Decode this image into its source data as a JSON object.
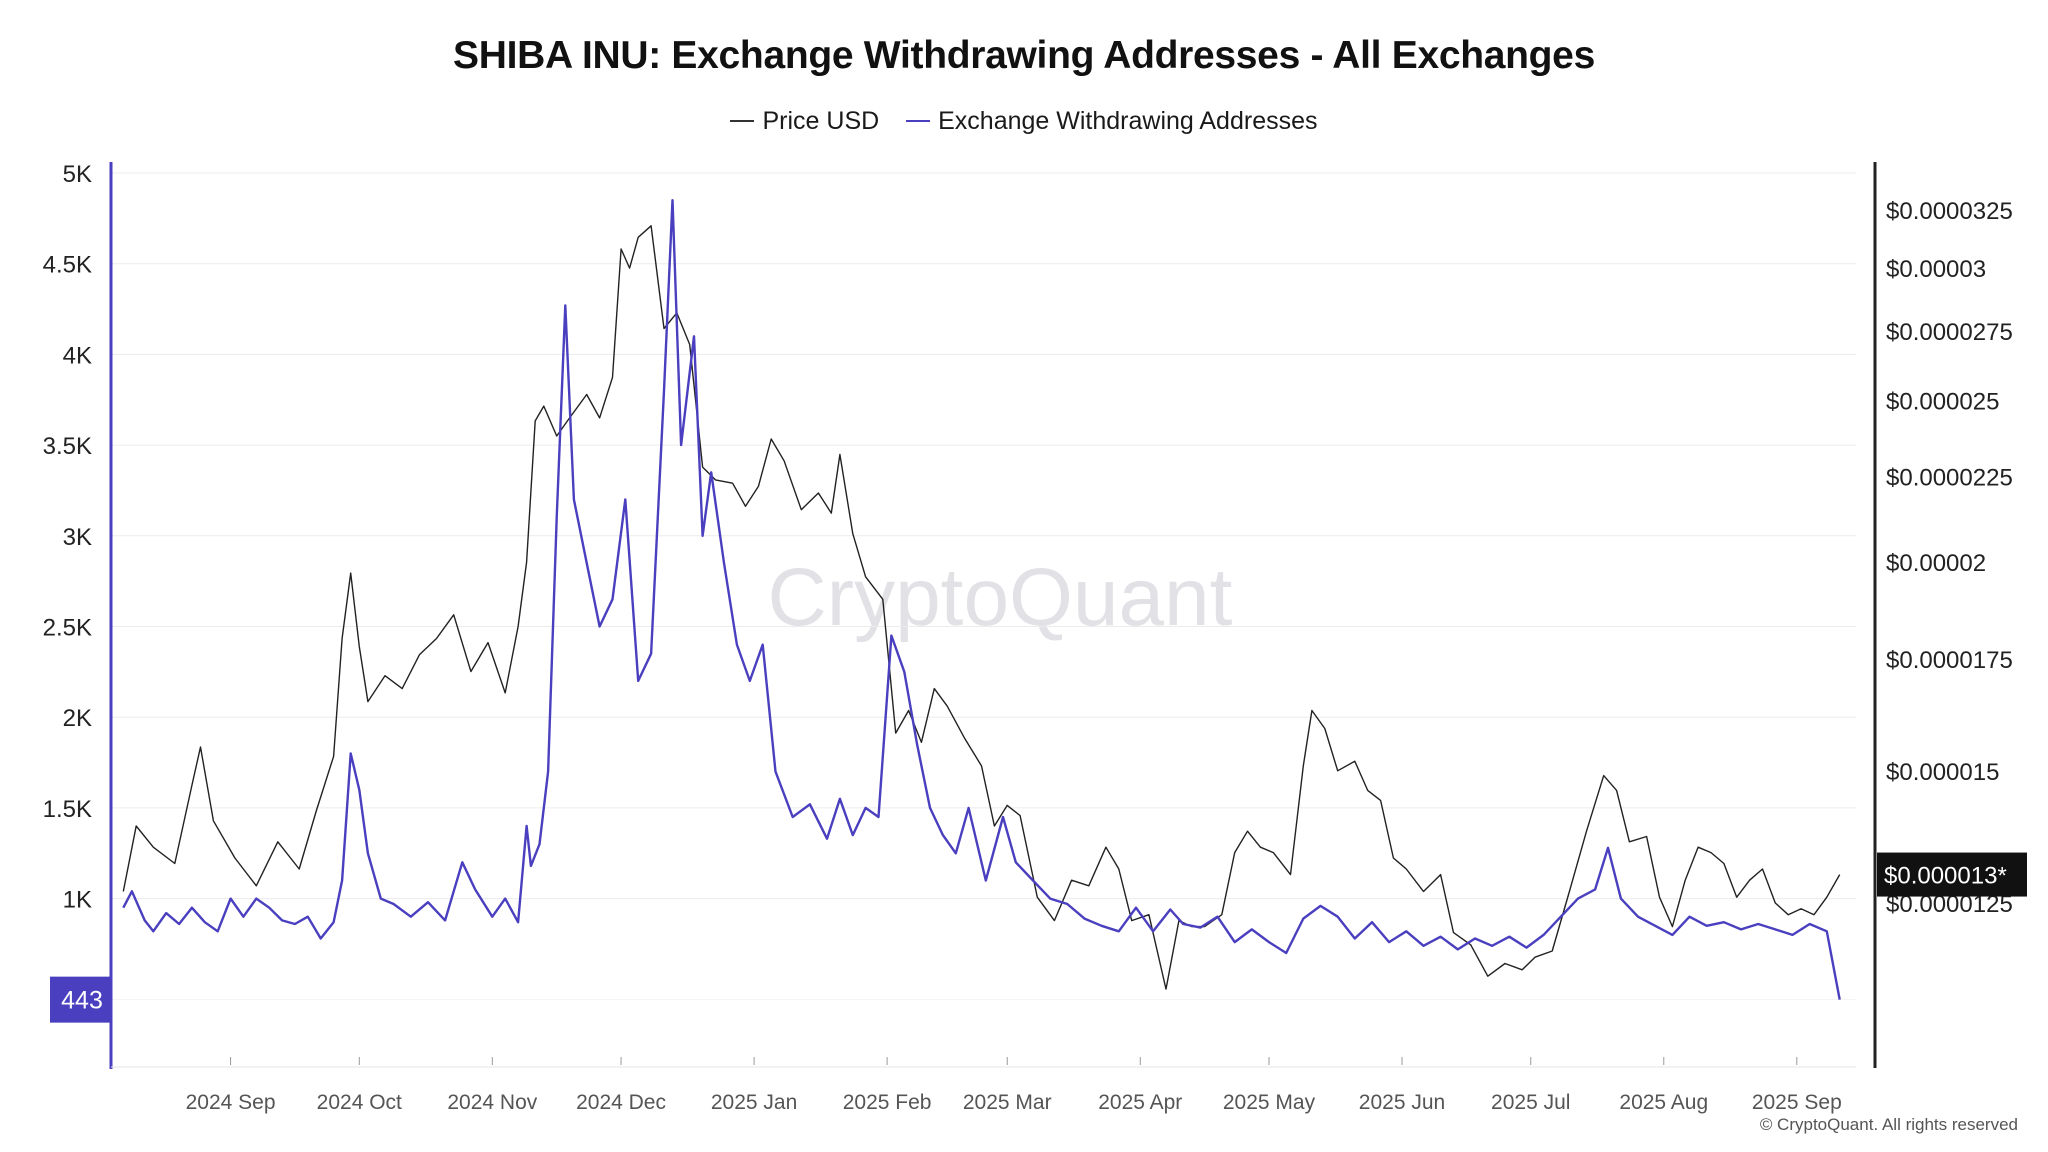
{
  "chart_data": {
    "type": "line",
    "title": "SHIBA INU: Exchange Withdrawing Addresses - All Exchanges",
    "x_ticks": [
      "2024 Sep",
      "2024 Oct",
      "2024 Nov",
      "2024 Dec",
      "2025 Jan",
      "2025 Feb",
      "2025 Mar",
      "2025 Apr",
      "2025 May",
      "2025 Jun",
      "2025 Jul",
      "2025 Aug",
      "2025 Sep"
    ],
    "left_axis": {
      "ticks": [
        "5K",
        "4.5K",
        "4K",
        "3.5K",
        "3K",
        "2.5K",
        "2K",
        "1.5K",
        "1K"
      ],
      "ylim": [
        0,
        5000
      ]
    },
    "right_axis": {
      "ticks": [
        "$0.0000325",
        "$0.00003",
        "$0.0000275",
        "$0.000025",
        "$0.0000225",
        "$0.00002",
        "$0.0000175",
        "$0.000015",
        "$0.0000125"
      ],
      "scale": "log"
    },
    "current_value_label": "443",
    "current_price_label": "$0.000013*",
    "grid": true,
    "legend_position": "top-center",
    "series": [
      {
        "name": "Price USD",
        "axis": "right",
        "color": "#222222",
        "points": [
          [
            "2024-08-07",
            1.27e-05
          ],
          [
            "2024-08-10",
            1.39e-05
          ],
          [
            "2024-08-14",
            1.35e-05
          ],
          [
            "2024-08-19",
            1.32e-05
          ],
          [
            "2024-08-23",
            1.47e-05
          ],
          [
            "2024-08-25",
            1.55e-05
          ],
          [
            "2024-08-28",
            1.4e-05
          ],
          [
            "2024-09-02",
            1.33e-05
          ],
          [
            "2024-09-07",
            1.28e-05
          ],
          [
            "2024-09-12",
            1.36e-05
          ],
          [
            "2024-09-17",
            1.31e-05
          ],
          [
            "2024-09-21",
            1.42e-05
          ],
          [
            "2024-09-25",
            1.53e-05
          ],
          [
            "2024-09-27",
            1.8e-05
          ],
          [
            "2024-09-29",
            1.97e-05
          ],
          [
            "2024-10-01",
            1.78e-05
          ],
          [
            "2024-10-03",
            1.65e-05
          ],
          [
            "2024-10-07",
            1.71e-05
          ],
          [
            "2024-10-11",
            1.68e-05
          ],
          [
            "2024-10-15",
            1.76e-05
          ],
          [
            "2024-10-19",
            1.8e-05
          ],
          [
            "2024-10-23",
            1.86e-05
          ],
          [
            "2024-10-27",
            1.72e-05
          ],
          [
            "2024-10-31",
            1.79e-05
          ],
          [
            "2024-11-04",
            1.67e-05
          ],
          [
            "2024-11-07",
            1.83e-05
          ],
          [
            "2024-11-09",
            2e-05
          ],
          [
            "2024-11-11",
            2.43e-05
          ],
          [
            "2024-11-13",
            2.48e-05
          ],
          [
            "2024-11-16",
            2.38e-05
          ],
          [
            "2024-11-19",
            2.44e-05
          ],
          [
            "2024-11-23",
            2.52e-05
          ],
          [
            "2024-11-26",
            2.44e-05
          ],
          [
            "2024-11-29",
            2.58e-05
          ],
          [
            "2024-12-01",
            3.08e-05
          ],
          [
            "2024-12-03",
            3e-05
          ],
          [
            "2024-12-05",
            3.13e-05
          ],
          [
            "2024-12-08",
            3.18e-05
          ],
          [
            "2024-12-11",
            2.76e-05
          ],
          [
            "2024-12-14",
            2.82e-05
          ],
          [
            "2024-12-17",
            2.7e-05
          ],
          [
            "2024-12-20",
            2.28e-05
          ],
          [
            "2024-12-23",
            2.24e-05
          ],
          [
            "2024-12-27",
            2.23e-05
          ],
          [
            "2024-12-30",
            2.16e-05
          ],
          [
            "2025-01-02",
            2.22e-05
          ],
          [
            "2025-01-05",
            2.37e-05
          ],
          [
            "2025-01-08",
            2.3e-05
          ],
          [
            "2025-01-12",
            2.15e-05
          ],
          [
            "2025-01-16",
            2.2e-05
          ],
          [
            "2025-01-19",
            2.14e-05
          ],
          [
            "2025-01-21",
            2.32e-05
          ],
          [
            "2025-01-24",
            2.08e-05
          ],
          [
            "2025-01-27",
            1.96e-05
          ],
          [
            "2025-01-31",
            1.9e-05
          ],
          [
            "2025-02-03",
            1.58e-05
          ],
          [
            "2025-02-06",
            1.63e-05
          ],
          [
            "2025-02-09",
            1.56e-05
          ],
          [
            "2025-02-12",
            1.68e-05
          ],
          [
            "2025-02-15",
            1.64e-05
          ],
          [
            "2025-02-19",
            1.57e-05
          ],
          [
            "2025-02-23",
            1.51e-05
          ],
          [
            "2025-02-26",
            1.39e-05
          ],
          [
            "2025-03-01",
            1.43e-05
          ],
          [
            "2025-03-04",
            1.41e-05
          ],
          [
            "2025-03-08",
            1.26e-05
          ],
          [
            "2025-03-12",
            1.22e-05
          ],
          [
            "2025-03-16",
            1.29e-05
          ],
          [
            "2025-03-20",
            1.28e-05
          ],
          [
            "2025-03-24",
            1.35e-05
          ],
          [
            "2025-03-27",
            1.31e-05
          ],
          [
            "2025-03-30",
            1.22e-05
          ],
          [
            "2025-04-03",
            1.23e-05
          ],
          [
            "2025-04-07",
            1.11e-05
          ],
          [
            "2025-04-10",
            1.22e-05
          ],
          [
            "2025-04-13",
            1.21e-05
          ],
          [
            "2025-04-16",
            1.21e-05
          ],
          [
            "2025-04-20",
            1.23e-05
          ],
          [
            "2025-04-23",
            1.34e-05
          ],
          [
            "2025-04-26",
            1.38e-05
          ],
          [
            "2025-04-29",
            1.35e-05
          ],
          [
            "2025-05-02",
            1.34e-05
          ],
          [
            "2025-05-06",
            1.3e-05
          ],
          [
            "2025-05-09",
            1.51e-05
          ],
          [
            "2025-05-11",
            1.63e-05
          ],
          [
            "2025-05-14",
            1.59e-05
          ],
          [
            "2025-05-17",
            1.5e-05
          ],
          [
            "2025-05-21",
            1.52e-05
          ],
          [
            "2025-05-24",
            1.46e-05
          ],
          [
            "2025-05-27",
            1.44e-05
          ],
          [
            "2025-05-30",
            1.33e-05
          ],
          [
            "2025-06-02",
            1.31e-05
          ],
          [
            "2025-06-06",
            1.27e-05
          ],
          [
            "2025-06-10",
            1.3e-05
          ],
          [
            "2025-06-13",
            1.2e-05
          ],
          [
            "2025-06-17",
            1.18e-05
          ],
          [
            "2025-06-21",
            1.13e-05
          ],
          [
            "2025-06-25",
            1.15e-05
          ],
          [
            "2025-06-29",
            1.14e-05
          ],
          [
            "2025-07-02",
            1.16e-05
          ],
          [
            "2025-07-06",
            1.17e-05
          ],
          [
            "2025-07-10",
            1.27e-05
          ],
          [
            "2025-07-14",
            1.38e-05
          ],
          [
            "2025-07-18",
            1.49e-05
          ],
          [
            "2025-07-21",
            1.46e-05
          ],
          [
            "2025-07-24",
            1.36e-05
          ],
          [
            "2025-07-28",
            1.37e-05
          ],
          [
            "2025-07-31",
            1.26e-05
          ],
          [
            "2025-08-03",
            1.21e-05
          ],
          [
            "2025-08-06",
            1.29e-05
          ],
          [
            "2025-08-09",
            1.35e-05
          ],
          [
            "2025-08-12",
            1.34e-05
          ],
          [
            "2025-08-15",
            1.32e-05
          ],
          [
            "2025-08-18",
            1.26e-05
          ],
          [
            "2025-08-21",
            1.29e-05
          ],
          [
            "2025-08-24",
            1.31e-05
          ],
          [
            "2025-08-27",
            1.25e-05
          ],
          [
            "2025-08-30",
            1.23e-05
          ],
          [
            "2025-09-02",
            1.24e-05
          ],
          [
            "2025-09-05",
            1.23e-05
          ],
          [
            "2025-09-08",
            1.26e-05
          ],
          [
            "2025-09-11",
            1.3e-05
          ]
        ]
      },
      {
        "name": "Exchange Withdrawing Addresses",
        "axis": "left",
        "color": "#4a3fbf",
        "points": [
          [
            "2024-08-07",
            950
          ],
          [
            "2024-08-09",
            1040
          ],
          [
            "2024-08-12",
            880
          ],
          [
            "2024-08-14",
            820
          ],
          [
            "2024-08-17",
            920
          ],
          [
            "2024-08-20",
            860
          ],
          [
            "2024-08-23",
            950
          ],
          [
            "2024-08-26",
            870
          ],
          [
            "2024-08-29",
            820
          ],
          [
            "2024-09-01",
            1000
          ],
          [
            "2024-09-04",
            900
          ],
          [
            "2024-09-07",
            1000
          ],
          [
            "2024-09-10",
            950
          ],
          [
            "2024-09-13",
            880
          ],
          [
            "2024-09-16",
            860
          ],
          [
            "2024-09-19",
            900
          ],
          [
            "2024-09-22",
            780
          ],
          [
            "2024-09-25",
            870
          ],
          [
            "2024-09-27",
            1100
          ],
          [
            "2024-09-29",
            1800
          ],
          [
            "2024-10-01",
            1600
          ],
          [
            "2024-10-03",
            1250
          ],
          [
            "2024-10-06",
            1000
          ],
          [
            "2024-10-09",
            970
          ],
          [
            "2024-10-13",
            900
          ],
          [
            "2024-10-17",
            980
          ],
          [
            "2024-10-21",
            880
          ],
          [
            "2024-10-25",
            1200
          ],
          [
            "2024-10-28",
            1050
          ],
          [
            "2024-11-01",
            900
          ],
          [
            "2024-11-04",
            1000
          ],
          [
            "2024-11-07",
            870
          ],
          [
            "2024-11-09",
            1400
          ],
          [
            "2024-11-10",
            1180
          ],
          [
            "2024-11-12",
            1300
          ],
          [
            "2024-11-14",
            1700
          ],
          [
            "2024-11-16",
            3100
          ],
          [
            "2024-11-18",
            4270
          ],
          [
            "2024-11-20",
            3200
          ],
          [
            "2024-11-23",
            2850
          ],
          [
            "2024-11-26",
            2500
          ],
          [
            "2024-11-29",
            2650
          ],
          [
            "2024-12-02",
            3200
          ],
          [
            "2024-12-05",
            2200
          ],
          [
            "2024-12-08",
            2350
          ],
          [
            "2024-12-11",
            3800
          ],
          [
            "2024-12-13",
            4850
          ],
          [
            "2024-12-15",
            3500
          ],
          [
            "2024-12-18",
            4100
          ],
          [
            "2024-12-20",
            3000
          ],
          [
            "2024-12-22",
            3350
          ],
          [
            "2024-12-25",
            2850
          ],
          [
            "2024-12-28",
            2400
          ],
          [
            "2024-12-31",
            2200
          ],
          [
            "2025-01-03",
            2400
          ],
          [
            "2025-01-06",
            1700
          ],
          [
            "2025-01-10",
            1450
          ],
          [
            "2025-01-14",
            1520
          ],
          [
            "2025-01-18",
            1330
          ],
          [
            "2025-01-21",
            1550
          ],
          [
            "2025-01-24",
            1350
          ],
          [
            "2025-01-27",
            1500
          ],
          [
            "2025-01-30",
            1450
          ],
          [
            "2025-02-02",
            2450
          ],
          [
            "2025-02-05",
            2250
          ],
          [
            "2025-02-08",
            1850
          ],
          [
            "2025-02-11",
            1500
          ],
          [
            "2025-02-14",
            1350
          ],
          [
            "2025-02-17",
            1250
          ],
          [
            "2025-02-20",
            1500
          ],
          [
            "2025-02-24",
            1100
          ],
          [
            "2025-02-28",
            1450
          ],
          [
            "2025-03-03",
            1200
          ],
          [
            "2025-03-07",
            1100
          ],
          [
            "2025-03-11",
            1000
          ],
          [
            "2025-03-15",
            970
          ],
          [
            "2025-03-19",
            890
          ],
          [
            "2025-03-23",
            850
          ],
          [
            "2025-03-27",
            820
          ],
          [
            "2025-03-31",
            950
          ],
          [
            "2025-04-04",
            820
          ],
          [
            "2025-04-08",
            940
          ],
          [
            "2025-04-11",
            860
          ],
          [
            "2025-04-15",
            840
          ],
          [
            "2025-04-19",
            900
          ],
          [
            "2025-04-23",
            760
          ],
          [
            "2025-04-27",
            830
          ],
          [
            "2025-05-01",
            760
          ],
          [
            "2025-05-05",
            700
          ],
          [
            "2025-05-09",
            890
          ],
          [
            "2025-05-13",
            960
          ],
          [
            "2025-05-17",
            900
          ],
          [
            "2025-05-21",
            780
          ],
          [
            "2025-05-25",
            870
          ],
          [
            "2025-05-29",
            760
          ],
          [
            "2025-06-02",
            820
          ],
          [
            "2025-06-06",
            740
          ],
          [
            "2025-06-10",
            790
          ],
          [
            "2025-06-14",
            720
          ],
          [
            "2025-06-18",
            780
          ],
          [
            "2025-06-22",
            740
          ],
          [
            "2025-06-26",
            790
          ],
          [
            "2025-06-30",
            730
          ],
          [
            "2025-07-04",
            800
          ],
          [
            "2025-07-08",
            900
          ],
          [
            "2025-07-12",
            1000
          ],
          [
            "2025-07-16",
            1050
          ],
          [
            "2025-07-19",
            1280
          ],
          [
            "2025-07-22",
            1000
          ],
          [
            "2025-07-26",
            900
          ],
          [
            "2025-07-30",
            850
          ],
          [
            "2025-08-03",
            800
          ],
          [
            "2025-08-07",
            900
          ],
          [
            "2025-08-11",
            850
          ],
          [
            "2025-08-15",
            870
          ],
          [
            "2025-08-19",
            830
          ],
          [
            "2025-08-23",
            860
          ],
          [
            "2025-08-27",
            830
          ],
          [
            "2025-08-31",
            800
          ],
          [
            "2025-09-04",
            860
          ],
          [
            "2025-09-08",
            820
          ],
          [
            "2025-09-11",
            443
          ]
        ]
      }
    ]
  },
  "copyright": "© CryptoQuant. All rights reserved",
  "watermark": "CryptoQuant"
}
